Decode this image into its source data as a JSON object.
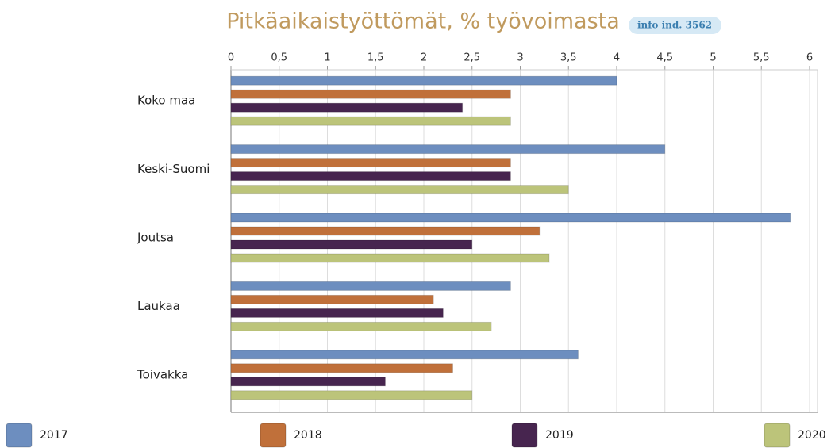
{
  "chart_data": {
    "type": "bar",
    "orientation": "horizontal",
    "title": "Pitkäaikaistyöttömät, % työvoimasta",
    "badge": "info ind. 3562",
    "categories": [
      "Koko maa",
      "Keski-Suomi",
      "Joutsa",
      "Laukaa",
      "Toivakka"
    ],
    "series": [
      {
        "name": "2017",
        "color": "#6d8ebf",
        "values": [
          4.0,
          4.5,
          5.8,
          2.9,
          3.6
        ]
      },
      {
        "name": "2018",
        "color": "#c0703a",
        "values": [
          2.9,
          2.9,
          3.2,
          2.1,
          2.3
        ]
      },
      {
        "name": "2019",
        "color": "#47254f",
        "values": [
          2.4,
          2.9,
          2.5,
          2.2,
          1.6
        ]
      },
      {
        "name": "2020",
        "color": "#bcc47a",
        "values": [
          2.9,
          3.5,
          3.3,
          2.7,
          2.5
        ]
      }
    ],
    "xlim": [
      0,
      6
    ],
    "xticks": [
      0,
      {
        "value": 0.5,
        "label": "0,5"
      },
      1,
      {
        "value": 1.5,
        "label": "1,5"
      },
      2,
      {
        "value": 2.5,
        "label": "2,5"
      },
      3,
      {
        "value": 3.5,
        "label": "3,5"
      },
      4,
      {
        "value": 4.5,
        "label": "4,5"
      },
      5,
      {
        "value": 5.5,
        "label": "5,5"
      },
      6
    ],
    "grid": true,
    "legend": "bottom"
  }
}
